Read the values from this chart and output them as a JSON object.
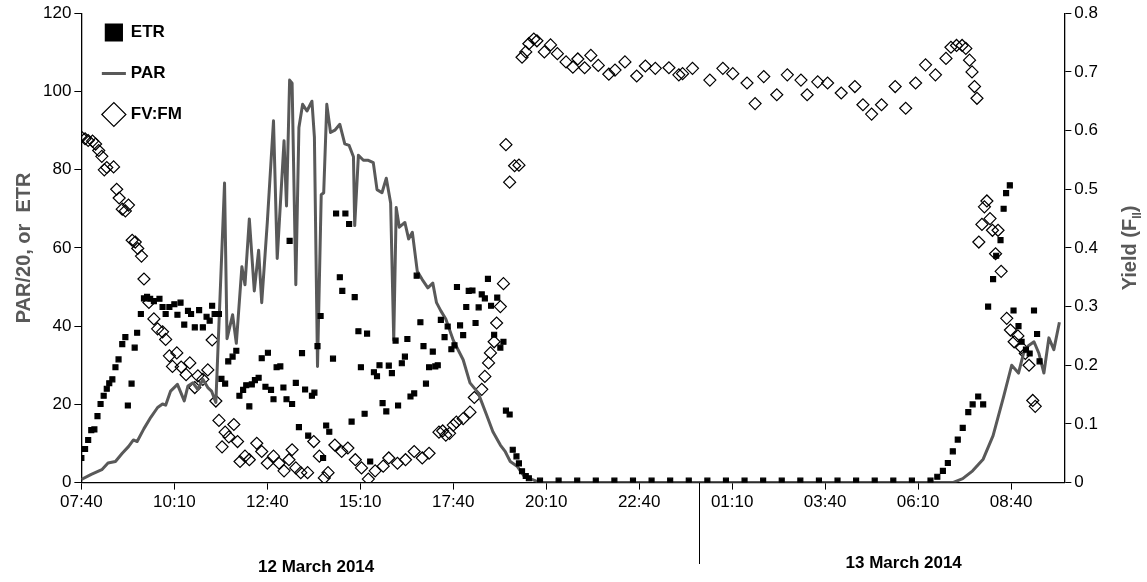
{
  "chart_data": {
    "type": "scatter",
    "ylabel": "PAR/20, or  ETR",
    "y2label": "Yield (F$_{II}$)",
    "annotations": [
      "12 March 2014",
      "13 March 2014"
    ],
    "xlim": [
      "2014-03-12T07:40",
      "2014-03-13T10:06"
    ],
    "xticks": [
      {
        "value": "2014-03-12T07:40",
        "label": "07:40"
      },
      {
        "value": "2014-03-12T10:10",
        "label": "10:10"
      },
      {
        "value": "2014-03-12T12:40",
        "label": "12:40"
      },
      {
        "value": "2014-03-12T15:10",
        "label": "15:10"
      },
      {
        "value": "2014-03-12T17:40",
        "label": "17:40"
      },
      {
        "value": "2014-03-12T20:10",
        "label": "20:10"
      },
      {
        "value": "2014-03-12T22:40",
        "label": "22:40"
      },
      {
        "value": "2014-03-13T01:10",
        "label": "01:10"
      },
      {
        "value": "2014-03-13T03:40",
        "label": "03:40"
      },
      {
        "value": "2014-03-13T06:10",
        "label": "06:10"
      },
      {
        "value": "2014-03-13T08:40",
        "label": "08:40"
      }
    ],
    "ylim": [
      0,
      120
    ],
    "yticks": [
      0,
      20,
      40,
      60,
      80,
      100,
      120
    ],
    "y2lim": [
      0,
      0.8
    ],
    "y2ticks": [
      0,
      0.1,
      0.2,
      0.3,
      0.4,
      0.5,
      0.6,
      0.7,
      0.8
    ],
    "legend": "top left",
    "series": [
      {
        "name": "ETR",
        "type": "scatter",
        "marker": "square",
        "color": "#000000",
        "x": [
          "2014-03-12T07:40",
          "2014-03-12T07:46",
          "2014-03-12T07:51",
          "2014-03-12T07:56",
          "2014-03-12T08:01",
          "2014-03-12T08:06",
          "2014-03-12T08:11",
          "2014-03-12T08:16",
          "2014-03-12T08:21",
          "2014-03-12T08:25",
          "2014-03-12T08:30",
          "2014-03-12T08:35",
          "2014-03-12T08:40",
          "2014-03-12T08:46",
          "2014-03-12T08:51",
          "2014-03-12T08:55",
          "2014-03-12T09:01",
          "2014-03-12T09:06",
          "2014-03-12T09:10",
          "2014-03-12T09:16",
          "2014-03-12T09:21",
          "2014-03-12T09:26",
          "2014-03-12T09:31",
          "2014-03-12T09:37",
          "2014-03-12T09:46",
          "2014-03-12T09:51",
          "2014-03-12T09:56",
          "2014-03-12T10:02",
          "2014-03-12T10:10",
          "2014-03-12T10:15",
          "2014-03-12T10:20",
          "2014-03-12T10:26",
          "2014-03-12T10:32",
          "2014-03-12T10:37",
          "2014-03-12T10:43",
          "2014-03-12T10:50",
          "2014-03-12T10:56",
          "2014-03-12T11:02",
          "2014-03-12T11:07",
          "2014-03-12T11:11",
          "2014-03-12T11:15",
          "2014-03-12T11:22",
          "2014-03-12T11:26",
          "2014-03-12T11:32",
          "2014-03-12T11:37",
          "2014-03-12T11:44",
          "2014-03-12T11:50",
          "2014-03-12T11:55",
          "2014-03-12T12:01",
          "2014-03-12T12:06",
          "2014-03-12T12:11",
          "2014-03-12T12:15",
          "2014-03-12T12:20",
          "2014-03-12T12:26",
          "2014-03-12T12:31",
          "2014-03-12T12:37",
          "2014-03-12T12:41",
          "2014-03-12T12:46",
          "2014-03-12T12:50",
          "2014-03-12T12:55",
          "2014-03-12T13:01",
          "2014-03-12T13:06",
          "2014-03-12T13:11",
          "2014-03-12T13:16",
          "2014-03-12T13:20",
          "2014-03-12T13:26",
          "2014-03-12T13:31",
          "2014-03-12T13:36",
          "2014-03-12T13:41",
          "2014-03-12T13:46",
          "2014-03-12T13:52",
          "2014-03-12T13:56",
          "2014-03-12T14:01",
          "2014-03-12T14:06",
          "2014-03-12T14:10",
          "2014-03-12T14:15",
          "2014-03-12T14:20",
          "2014-03-12T14:26",
          "2014-03-12T14:31",
          "2014-03-12T14:37",
          "2014-03-12T14:41",
          "2014-03-12T14:46",
          "2014-03-12T14:52",
          "2014-03-12T14:56",
          "2014-03-12T15:01",
          "2014-03-12T15:07",
          "2014-03-12T15:11",
          "2014-03-12T15:17",
          "2014-03-12T15:21",
          "2014-03-12T15:26",
          "2014-03-12T15:32",
          "2014-03-12T15:37",
          "2014-03-12T15:41",
          "2014-03-12T15:46",
          "2014-03-12T15:52",
          "2014-03-12T15:56",
          "2014-03-12T16:01",
          "2014-03-12T16:07",
          "2014-03-12T16:11",
          "2014-03-12T16:17",
          "2014-03-12T16:22",
          "2014-03-12T16:26",
          "2014-03-12T16:31",
          "2014-03-12T16:37",
          "2014-03-12T16:41",
          "2014-03-12T16:47",
          "2014-03-12T16:52",
          "2014-03-12T16:56",
          "2014-03-12T17:01",
          "2014-03-12T17:07",
          "2014-03-12T17:11",
          "2014-03-12T17:15",
          "2014-03-12T17:20",
          "2014-03-12T17:26",
          "2014-03-12T17:31",
          "2014-03-12T17:37",
          "2014-03-12T17:42",
          "2014-03-12T17:46",
          "2014-03-12T17:51",
          "2014-03-12T17:56",
          "2014-03-12T18:01",
          "2014-03-12T18:05",
          "2014-03-12T18:11",
          "2014-03-12T18:16",
          "2014-03-12T18:21",
          "2014-03-12T18:26",
          "2014-03-12T18:31",
          "2014-03-12T18:36",
          "2014-03-12T18:41",
          "2014-03-12T18:46",
          "2014-03-12T18:51",
          "2014-03-12T18:56",
          "2014-03-12T19:01",
          "2014-03-12T19:05",
          "2014-03-12T19:11",
          "2014-03-12T19:16",
          "2014-03-12T19:22",
          "2014-03-12T19:26",
          "2014-03-12T19:31",
          "2014-03-12T19:37",
          "2014-03-12T19:42",
          "2014-03-12T20:00",
          "2014-03-12T20:30",
          "2014-03-12T21:00",
          "2014-03-12T21:30",
          "2014-03-12T22:00",
          "2014-03-12T22:30",
          "2014-03-12T23:00",
          "2014-03-12T23:30",
          "2014-03-13T00:00",
          "2014-03-13T00:30",
          "2014-03-13T01:00",
          "2014-03-13T01:30",
          "2014-03-13T02:00",
          "2014-03-13T02:30",
          "2014-03-13T03:00",
          "2014-03-13T03:30",
          "2014-03-13T04:00",
          "2014-03-13T04:30",
          "2014-03-13T05:00",
          "2014-03-13T05:30",
          "2014-03-13T06:00",
          "2014-03-13T06:30",
          "2014-03-13T06:41",
          "2014-03-13T06:50",
          "2014-03-13T06:58",
          "2014-03-13T07:06",
          "2014-03-13T07:14",
          "2014-03-13T07:22",
          "2014-03-13T07:31",
          "2014-03-13T07:38",
          "2014-03-13T07:47",
          "2014-03-13T07:55",
          "2014-03-13T08:03",
          "2014-03-13T08:11",
          "2014-03-13T08:16",
          "2014-03-13T08:23",
          "2014-03-13T08:28",
          "2014-03-13T08:32",
          "2014-03-13T08:38",
          "2014-03-13T08:44",
          "2014-03-13T08:52",
          "2014-03-13T08:57",
          "2014-03-13T09:04",
          "2014-03-13T09:10",
          "2014-03-13T09:17",
          "2014-03-13T09:22",
          "2014-03-13T09:26"
        ],
        "values": [
          6.3,
          8.6,
          10.9,
          13.4,
          13.6,
          17,
          20.1,
          22.2,
          24,
          25.4,
          26.4,
          29.5,
          31.5,
          35.4,
          37.2,
          19.7,
          25.3,
          34.5,
          38.3,
          43.1,
          47.1,
          47.5,
          47,
          46.4,
          47,
          44.9,
          43.1,
          44.9,
          45.6,
          42.9,
          46,
          40.4,
          43.9,
          43.1,
          39.7,
          44.1,
          39.7,
          42.4,
          41.4,
          45.2,
          43.1,
          43.1,
          26.5,
          25.3,
          31,
          32.2,
          33.7,
          22.2,
          23.7,
          24.9,
          19.5,
          25.1,
          26.2,
          26.8,
          31.8,
          24.5,
          33.2,
          23.7,
          21.3,
          29.5,
          29.7,
          24.3,
          21.3,
          61.8,
          20.1,
          25.5,
          14.2,
          33.1,
          23.8,
          12,
          22.2,
          23,
          34.9,
          42.6,
          6.3,
          14.6,
          13,
          31.7,
          68.8,
          52.5,
          49,
          68.8,
          66.1,
          15.6,
          47.4,
          38.7,
          29.5,
          17.6,
          38.1,
          5.4,
          28.2,
          27.2,
          30,
          20.3,
          18.2,
          29.9,
          28,
          36.3,
          19.7,
          30.5,
          32.2,
          36.7,
          22,
          22.8,
          52.9,
          41,
          34.9,
          25.3,
          29.5,
          33.5,
          29.7,
          30,
          41.6,
          37.2,
          39.9,
          34.1,
          35.1,
          50,
          40.2,
          37.7,
          44.9,
          49,
          49.1,
          40.8,
          44.8,
          48.1,
          47.1,
          52.1,
          45.2,
          37.8,
          47.3,
          34.5,
          36,
          18.4,
          17.4,
          8.4,
          6.7,
          4.9,
          2.9,
          1.7,
          1.1,
          0.5,
          0.5,
          0.5,
          0.5,
          0.5,
          0.5,
          0.5,
          0.5,
          0.5,
          0.5,
          0.5,
          0.5,
          0.5,
          0.5,
          0.5,
          0.5,
          0.5,
          0.5,
          0.5,
          0.5,
          0.5,
          0.5,
          1.5,
          3,
          5,
          8,
          11,
          14,
          18,
          20,
          22,
          20,
          45,
          52,
          58,
          62,
          70,
          74,
          76,
          44,
          40,
          36,
          34,
          33,
          44,
          38,
          31
        ]
      },
      {
        "name": "PAR",
        "type": "line",
        "marker": "none",
        "color": "#595959",
        "x": [
          "2014-03-12T07:40",
          "2014-03-12T07:56",
          "2014-03-12T08:13",
          "2014-03-12T08:23",
          "2014-03-12T08:35",
          "2014-03-12T08:46",
          "2014-03-12T08:56",
          "2014-03-12T09:04",
          "2014-03-12T09:10",
          "2014-03-12T09:21",
          "2014-03-12T09:32",
          "2014-03-12T09:43",
          "2014-03-12T09:51",
          "2014-03-12T09:56",
          "2014-03-12T10:04",
          "2014-03-12T10:15",
          "2014-03-12T10:26",
          "2014-03-12T10:32",
          "2014-03-12T10:40",
          "2014-03-12T10:48",
          "2014-03-12T10:56",
          "2014-03-12T11:04",
          "2014-03-12T11:10",
          "2014-03-12T11:17",
          "2014-03-12T11:31",
          "2014-03-12T11:35",
          "2014-03-12T11:44",
          "2014-03-12T11:50",
          "2014-03-12T11:59",
          "2014-03-12T12:04",
          "2014-03-12T12:11",
          "2014-03-12T12:19",
          "2014-03-12T12:26",
          "2014-03-12T12:31",
          "2014-03-12T12:40",
          "2014-03-12T12:50",
          "2014-03-12T12:56",
          "2014-03-12T13:07",
          "2014-03-12T13:11",
          "2014-03-12T13:16",
          "2014-03-12T13:20",
          "2014-03-12T13:26",
          "2014-03-12T13:31",
          "2014-03-12T13:37",
          "2014-03-12T13:44",
          "2014-03-12T13:52",
          "2014-03-12T13:56",
          "2014-03-12T14:01",
          "2014-03-12T14:07",
          "2014-03-12T14:11",
          "2014-03-12T14:16",
          "2014-03-12T14:22",
          "2014-03-12T14:29",
          "2014-03-12T14:37",
          "2014-03-12T14:45",
          "2014-03-12T14:52",
          "2014-03-12T14:59",
          "2014-03-12T15:01",
          "2014-03-12T15:07",
          "2014-03-12T15:15",
          "2014-03-12T15:23",
          "2014-03-12T15:31",
          "2014-03-12T15:37",
          "2014-03-12T15:45",
          "2014-03-12T15:52",
          "2014-03-12T15:59",
          "2014-03-12T16:04",
          "2014-03-12T16:08",
          "2014-03-12T16:13",
          "2014-03-12T16:22",
          "2014-03-12T16:28",
          "2014-03-12T16:34",
          "2014-03-12T16:42",
          "2014-03-12T16:50",
          "2014-03-12T16:59",
          "2014-03-12T17:07",
          "2014-03-12T17:13",
          "2014-03-12T17:20",
          "2014-03-12T17:28",
          "2014-03-12T17:40",
          "2014-03-12T17:56",
          "2014-03-12T18:07",
          "2014-03-12T18:20",
          "2014-03-12T18:34",
          "2014-03-12T18:44",
          "2014-03-12T18:56",
          "2014-03-12T19:04",
          "2014-03-12T19:12",
          "2014-03-12T19:23",
          "2014-03-12T19:34",
          "2014-03-12T19:47",
          "2014-03-12T20:00",
          "2014-03-13T07:06",
          "2014-03-13T07:22",
          "2014-03-13T07:38",
          "2014-03-13T07:55",
          "2014-03-13T08:11",
          "2014-03-13T08:28",
          "2014-03-13T08:41",
          "2014-03-13T08:52",
          "2014-03-13T09:00",
          "2014-03-13T09:08",
          "2014-03-13T09:17",
          "2014-03-13T09:25",
          "2014-03-13T09:33",
          "2014-03-13T09:41",
          "2014-03-13T09:49",
          "2014-03-13T09:58"
        ],
        "values": [
          0.8,
          2.1,
          3.3,
          5,
          5.4,
          7.5,
          9.2,
          10.9,
          10.5,
          13.8,
          16.7,
          19.2,
          20.1,
          19.8,
          23.4,
          25.1,
          20.9,
          24.7,
          25.5,
          23.8,
          26.4,
          24.3,
          23.4,
          20.5,
          76.6,
          36.8,
          42.9,
          35.6,
          55.2,
          50.6,
          67.4,
          49,
          59.4,
          46,
          66.5,
          92.5,
          57.3,
          87.4,
          70.7,
          102.9,
          102.1,
          50.6,
          90.8,
          96.7,
          95,
          97.5,
          88.3,
          29.7,
          73.6,
          74.1,
          96.7,
          89.5,
          90.1,
          91.6,
          86.6,
          86.2,
          83.3,
          65.7,
          83.7,
          82.4,
          82.4,
          81.8,
          74.9,
          74.1,
          77.8,
          71.5,
          36.4,
          70.3,
          65.3,
          66.5,
          62.3,
          64,
          54,
          51.9,
          49.8,
          51,
          46,
          43.9,
          41.8,
          36.4,
          31.4,
          25.5,
          23,
          17.2,
          13,
          9.6,
          7.9,
          5.4,
          4.2,
          1.7,
          0.8,
          0,
          0,
          1,
          3,
          6,
          12,
          22,
          30,
          28,
          33,
          35,
          36,
          33,
          28,
          37,
          34,
          41
        ]
      },
      {
        "name": "FV:FM",
        "type": "scatter",
        "marker": "diamond",
        "axis": "y2",
        "color": "#000000",
        "x": [
          "2014-03-12T07:40",
          "2014-03-12T07:46",
          "2014-03-12T07:51",
          "2014-03-12T07:58",
          "2014-03-12T08:03",
          "2014-03-12T08:08",
          "2014-03-12T08:13",
          "2014-03-12T08:17",
          "2014-03-12T08:21",
          "2014-03-12T08:32",
          "2014-03-12T08:37",
          "2014-03-12T08:41",
          "2014-03-12T08:46",
          "2014-03-12T08:51",
          "2014-03-12T08:56",
          "2014-03-12T09:02",
          "2014-03-12T09:07",
          "2014-03-12T09:11",
          "2014-03-12T09:17",
          "2014-03-12T09:21",
          "2014-03-12T09:29",
          "2014-03-12T09:37",
          "2014-03-12T09:43",
          "2014-03-12T09:51",
          "2014-03-12T09:56",
          "2014-03-12T10:02",
          "2014-03-12T10:07",
          "2014-03-12T10:14",
          "2014-03-12T10:21",
          "2014-03-12T10:29",
          "2014-03-12T10:35",
          "2014-03-12T10:43",
          "2014-03-12T10:48",
          "2014-03-12T10:56",
          "2014-03-12T11:04",
          "2014-03-12T11:11",
          "2014-03-12T11:17",
          "2014-03-12T11:22",
          "2014-03-12T11:27",
          "2014-03-12T11:32",
          "2014-03-12T11:38",
          "2014-03-12T11:46",
          "2014-03-12T11:52",
          "2014-03-12T11:56",
          "2014-03-12T12:04",
          "2014-03-12T12:11",
          "2014-03-12T12:23",
          "2014-03-12T12:31",
          "2014-03-12T12:40",
          "2014-03-12T12:50",
          "2014-03-12T12:59",
          "2014-03-12T13:07",
          "2014-03-12T13:15",
          "2014-03-12T13:20",
          "2014-03-12T13:26",
          "2014-03-12T13:34",
          "2014-03-12T13:45",
          "2014-03-12T13:55",
          "2014-03-12T14:04",
          "2014-03-12T14:12",
          "2014-03-12T14:18",
          "2014-03-12T14:29",
          "2014-03-12T14:40",
          "2014-03-12T14:50",
          "2014-03-12T15:02",
          "2014-03-12T15:12",
          "2014-03-12T15:23",
          "2014-03-12T15:34",
          "2014-03-12T15:47",
          "2014-03-12T15:56",
          "2014-03-12T16:10",
          "2014-03-12T16:23",
          "2014-03-12T16:37",
          "2014-03-12T16:50",
          "2014-03-12T17:01",
          "2014-03-12T17:17",
          "2014-03-12T17:23",
          "2014-03-12T17:28",
          "2014-03-12T17:34",
          "2014-03-12T17:40",
          "2014-03-12T17:45",
          "2014-03-12T17:56",
          "2014-03-12T18:07",
          "2014-03-12T18:14",
          "2014-03-12T18:26",
          "2014-03-12T18:31",
          "2014-03-12T18:37",
          "2014-03-12T18:40",
          "2014-03-12T18:46",
          "2014-03-12T18:50",
          "2014-03-12T18:56",
          "2014-03-12T19:01",
          "2014-03-12T19:05",
          "2014-03-12T19:11",
          "2014-03-12T19:19",
          "2014-03-12T19:26",
          "2014-03-12T19:31",
          "2014-03-12T19:37",
          "2014-03-12T19:42",
          "2014-03-12T19:50",
          "2014-03-12T19:55",
          "2014-03-12T20:07",
          "2014-03-12T20:17",
          "2014-03-12T20:28",
          "2014-03-12T20:42",
          "2014-03-12T20:53",
          "2014-03-12T21:01",
          "2014-03-12T21:12",
          "2014-03-12T21:22",
          "2014-03-12T21:34",
          "2014-03-12T21:51",
          "2014-03-12T22:01",
          "2014-03-12T22:17",
          "2014-03-12T22:36",
          "2014-03-12T22:50",
          "2014-03-12T23:06",
          "2014-03-12T23:28",
          "2014-03-12T23:44",
          "2014-03-12T23:50",
          "2014-03-13T00:06",
          "2014-03-13T00:34",
          "2014-03-13T00:55",
          "2014-03-13T01:11",
          "2014-03-13T01:34",
          "2014-03-13T01:47",
          "2014-03-13T02:01",
          "2014-03-13T02:22",
          "2014-03-13T02:39",
          "2014-03-13T03:01",
          "2014-03-13T03:11",
          "2014-03-13T03:28",
          "2014-03-13T03:44",
          "2014-03-13T04:06",
          "2014-03-13T04:28",
          "2014-03-13T04:41",
          "2014-03-13T04:55",
          "2014-03-13T05:11",
          "2014-03-13T05:33",
          "2014-03-13T05:50",
          "2014-03-13T06:06",
          "2014-03-13T06:22",
          "2014-03-13T06:38",
          "2014-03-13T06:55",
          "2014-03-13T07:03",
          "2014-03-13T07:12",
          "2014-03-13T07:21",
          "2014-03-13T07:27",
          "2014-03-13T07:33",
          "2014-03-13T07:37",
          "2014-03-13T07:41",
          "2014-03-13T07:45",
          "2014-03-13T07:48",
          "2014-03-13T07:53",
          "2014-03-13T07:57",
          "2014-03-13T08:01",
          "2014-03-13T08:06",
          "2014-03-13T08:10",
          "2014-03-13T08:15",
          "2014-03-13T08:19",
          "2014-03-13T08:24",
          "2014-03-13T08:33",
          "2014-03-13T08:39",
          "2014-03-13T08:45",
          "2014-03-13T08:51",
          "2014-03-13T08:57",
          "2014-03-13T09:03",
          "2014-03-13T09:09",
          "2014-03-13T09:15",
          "2014-03-13T09:19"
        ],
        "values": [
          0.589,
          0.586,
          0.583,
          0.582,
          0.577,
          0.566,
          0.556,
          0.533,
          0.537,
          0.538,
          0.5,
          0.485,
          0.466,
          0.463,
          0.473,
          0.413,
          0.41,
          0.399,
          0.386,
          0.347,
          0.307,
          0.279,
          0.262,
          0.257,
          0.244,
          0.216,
          0.198,
          0.221,
          0.197,
          0.184,
          0.204,
          0.162,
          0.182,
          0.176,
          0.192,
          0.243,
          0.139,
          0.106,
          0.061,
          0.086,
          0.078,
          0.099,
          0.07,
          0.036,
          0.045,
          0.039,
          0.067,
          0.053,
          0.033,
          0.045,
          0.033,
          0.02,
          0.039,
          0.056,
          0.025,
          0.017,
          0.017,
          0.07,
          0.045,
          0.008,
          0.017,
          0.064,
          0.053,
          0.059,
          0.039,
          0.025,
          0.006,
          0.02,
          0.028,
          0.042,
          0.033,
          0.039,
          0.053,
          0.042,
          0.05,
          0.086,
          0.088,
          0.081,
          0.084,
          0.098,
          0.103,
          0.109,
          0.12,
          0.145,
          0.159,
          0.181,
          0.204,
          0.221,
          0.24,
          0.272,
          0.3,
          0.339,
          0.576,
          0.512,
          0.54,
          0.541,
          0.725,
          0.734,
          0.748,
          0.756,
          0.753,
          0.734,
          0.746,
          0.731,
          0.717,
          0.708,
          0.722,
          0.707,
          0.728,
          0.711,
          0.696,
          0.703,
          0.717,
          0.693,
          0.71,
          0.706,
          0.707,
          0.695,
          0.697,
          0.706,
          0.686,
          0.706,
          0.697,
          0.681,
          0.646,
          0.692,
          0.661,
          0.695,
          0.686,
          0.661,
          0.683,
          0.681,
          0.664,
          0.675,
          0.644,
          0.628,
          0.644,
          0.675,
          0.638,
          0.681,
          0.712,
          0.695,
          0.723,
          0.742,
          0.745,
          0.745,
          0.74,
          0.72,
          0.7,
          0.675,
          0.655,
          0.41,
          0.44,
          0.47,
          0.48,
          0.45,
          0.43,
          0.39,
          0.43,
          0.36,
          0.28,
          0.26,
          0.24,
          0.25,
          0.23,
          0.22,
          0.2,
          0.14,
          0.13
        ]
      }
    ]
  }
}
